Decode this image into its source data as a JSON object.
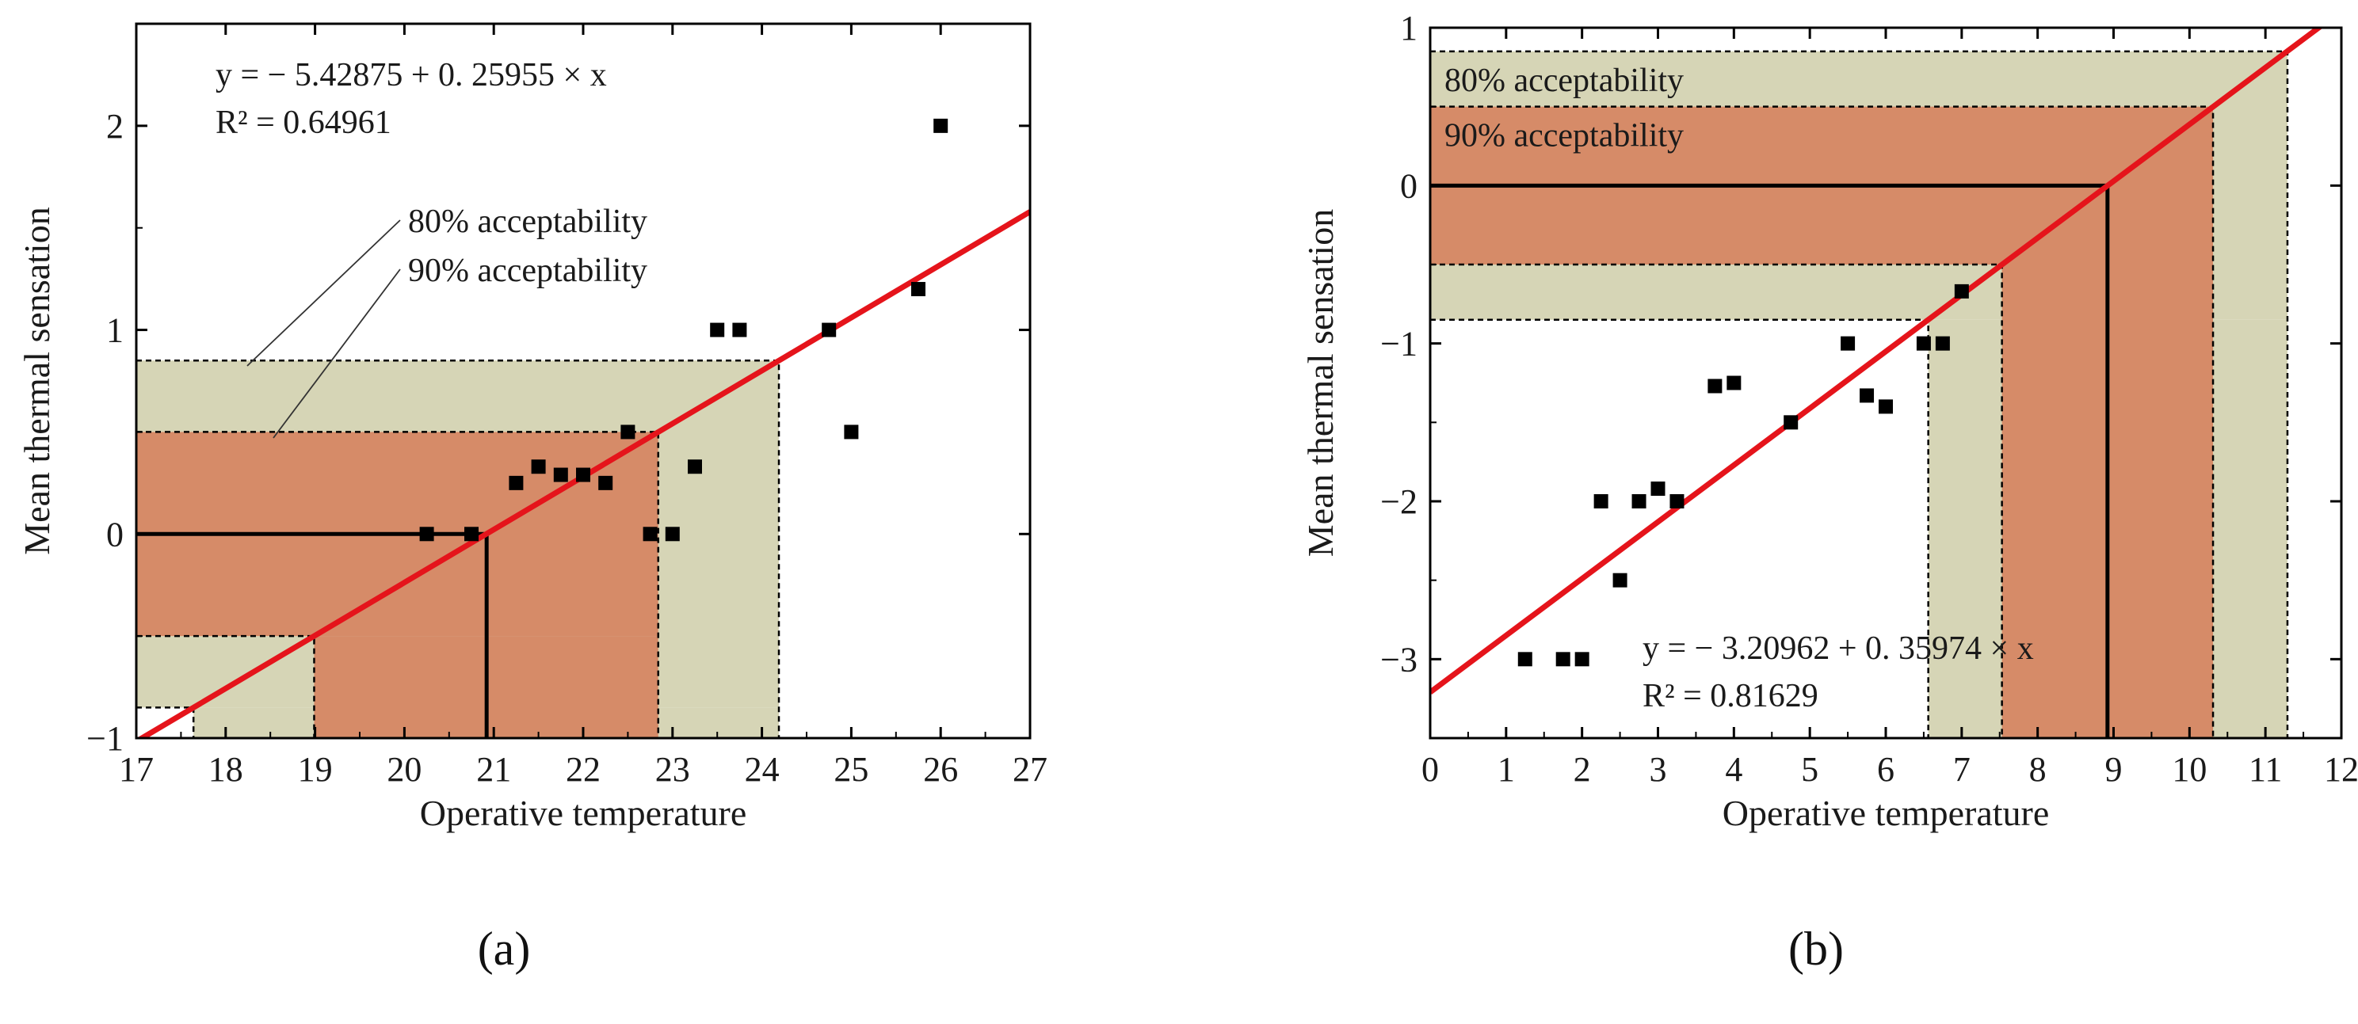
{
  "colors": {
    "band80": "#d6d5b6",
    "band90": "#d68b68",
    "fit_line": "#e5141b",
    "points": "#000000",
    "axis": "#000000"
  },
  "chart_data": [
    {
      "type": "scatter",
      "panel_label": "(a)",
      "xlabel": "Operative temperature",
      "ylabel": "Mean thermal sensation",
      "xlim": [
        17,
        27
      ],
      "ylim": [
        -1,
        2.5
      ],
      "xticks": [
        17,
        18,
        19,
        20,
        21,
        22,
        23,
        24,
        25,
        26,
        27
      ],
      "yticks": [
        -1,
        0,
        1,
        2
      ],
      "ytick_labels": [
        "−1",
        "0",
        "1",
        "2"
      ],
      "equation": "y = − 5.42875 + 0. 25955 × x",
      "r2": "R² = 0.64961",
      "fit": {
        "intercept": -5.42875,
        "slope": 0.25955
      },
      "neutral_temperature": 20.92,
      "band80": {
        "vmin": -0.85,
        "vmax": 0.85,
        "tmin": 17.64,
        "tmax": 24.19,
        "label": "80% acceptability"
      },
      "band90": {
        "vmin": -0.5,
        "vmax": 0.5,
        "tmin": 18.99,
        "tmax": 22.84,
        "label": "90% acceptability"
      },
      "points": [
        {
          "x": 20.25,
          "y": 0
        },
        {
          "x": 20.75,
          "y": 0
        },
        {
          "x": 21.25,
          "y": 0.25
        },
        {
          "x": 21.5,
          "y": 0.33
        },
        {
          "x": 21.75,
          "y": 0.29
        },
        {
          "x": 22.0,
          "y": 0.29
        },
        {
          "x": 22.25,
          "y": 0.25
        },
        {
          "x": 22.5,
          "y": 0.5
        },
        {
          "x": 22.75,
          "y": 0
        },
        {
          "x": 23.0,
          "y": 0
        },
        {
          "x": 23.25,
          "y": 0.33
        },
        {
          "x": 23.5,
          "y": 1.0
        },
        {
          "x": 23.75,
          "y": 1.0
        },
        {
          "x": 24.75,
          "y": 1.0
        },
        {
          "x": 25.0,
          "y": 0.5
        },
        {
          "x": 25.75,
          "y": 1.2
        },
        {
          "x": 26.0,
          "y": 2.0
        }
      ]
    },
    {
      "type": "scatter",
      "panel_label": "(b)",
      "xlabel": "Operative temperature",
      "ylabel": "Mean thermal sensation",
      "xlim": [
        0,
        12
      ],
      "ylim": [
        -3.5,
        1
      ],
      "xticks": [
        0,
        1,
        2,
        3,
        4,
        5,
        6,
        7,
        8,
        9,
        10,
        11,
        12
      ],
      "yticks": [
        -3,
        -2,
        -1,
        0,
        1
      ],
      "ytick_labels": [
        "−3",
        "−2",
        "−1",
        "0",
        "1"
      ],
      "equation": "y = − 3.20962 + 0. 35974 × x",
      "r2": "R² = 0.81629",
      "fit": {
        "intercept": -3.20962,
        "slope": 0.35974
      },
      "neutral_temperature": 8.92,
      "band80": {
        "vmin": -0.85,
        "vmax": 0.85,
        "tmin": 6.56,
        "tmax": 11.29,
        "label": "80% acceptability"
      },
      "band90": {
        "vmin": -0.5,
        "vmax": 0.5,
        "tmin": 7.53,
        "tmax": 10.31,
        "label": "90% acceptability"
      },
      "points": [
        {
          "x": 1.25,
          "y": -3
        },
        {
          "x": 1.75,
          "y": -3
        },
        {
          "x": 2.0,
          "y": -3
        },
        {
          "x": 2.25,
          "y": -2
        },
        {
          "x": 2.5,
          "y": -2.5
        },
        {
          "x": 2.75,
          "y": -2
        },
        {
          "x": 3.0,
          "y": -1.92
        },
        {
          "x": 3.25,
          "y": -2
        },
        {
          "x": 3.75,
          "y": -1.27
        },
        {
          "x": 4.0,
          "y": -1.25
        },
        {
          "x": 4.75,
          "y": -1.5
        },
        {
          "x": 5.5,
          "y": -1
        },
        {
          "x": 5.75,
          "y": -1.33
        },
        {
          "x": 6.0,
          "y": -1.4
        },
        {
          "x": 6.5,
          "y": -1
        },
        {
          "x": 6.75,
          "y": -1
        },
        {
          "x": 7.0,
          "y": -0.67
        }
      ]
    }
  ]
}
